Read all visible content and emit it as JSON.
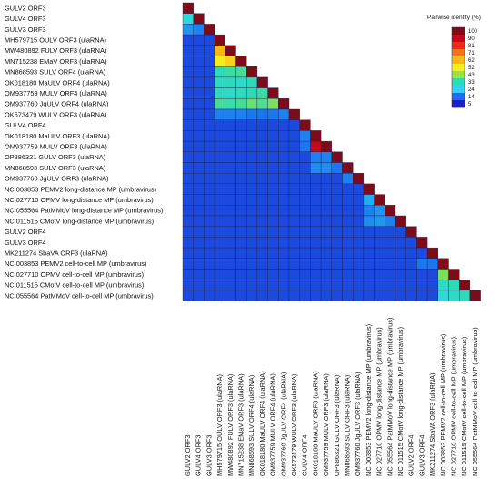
{
  "chart_data": {
    "type": "heatmap",
    "title": "",
    "legend_title": "Pairwise identity (%)",
    "legend_placement": "top-right",
    "legend_ticks": [
      100,
      90,
      81,
      71,
      62,
      52,
      43,
      33,
      24,
      14,
      5
    ],
    "legend_colors": [
      "#7b0d1b",
      "#c5081a",
      "#ef2a1f",
      "#f6711c",
      "#f9b81a",
      "#f4ee1d",
      "#9ce23a",
      "#2fdbb2",
      "#2fd3f2",
      "#1a6cf0",
      "#1f1fc8"
    ],
    "labels": [
      "GULV2 ORF3",
      "GULV4 ORF3",
      "GULV3 ORF3",
      "MH579715 OULV ORF3 (ulaRNA)",
      "MW480892 FULV ORF3 (ulaRNA)",
      "MN715238 EMaV ORF3 (ulaRNA)",
      "MN868593 SULV ORF4 (ulaRNA)",
      "OK018180 MaULV ORF4 (ulaRNA)",
      "OM937759 MULV ORF4 (ulaRNA)",
      "OM937760 JgULV ORF4 (ulaRNA)",
      "OK573479 WULV ORF3 (ulaRNA)",
      "GULV4 ORF4",
      "OK018180 MaULV ORF3 (ulaRNA)",
      "OM937759 MULV ORF3 (ulaRNA)",
      "OP886321 GULV ORF3 (ulaRNA)",
      "MN868593 SULV ORF3 (ulaRNA)",
      "OM937760 JgULV ORF3 (ulaRNA)",
      "NC 003853 PEMV2 long-distance MP (umbravirus)",
      "NC 027710 OPMV long-distance MP (umbravirus)",
      "NC 055564 PatMMoV long-distance MP (umbravirus)",
      "NC 011515 CMotV long-distance MP (umbravirus)",
      "GULV2 ORF4",
      "GULV3 ORF4",
      "MK211274 SbaVA  ORF3 (ulaRNA)",
      "NC 003853 PEMV2 cell-to-cell MP (umbravirus)",
      "NC 027710 OPMV cell-to-cell MP (umbravirus)",
      "NC 011515 CMotV cell-to-cell MP (umbravirus)",
      "NC 055564 PatMMoV cell-to-cell MP (umbravirus)"
    ],
    "default_identity": 10,
    "diagonal_identity": 100,
    "pairs": [
      {
        "row": 1,
        "col": 0,
        "value": 28
      },
      {
        "row": 2,
        "col": 0,
        "value": 18
      },
      {
        "row": 2,
        "col": 1,
        "value": 16
      },
      {
        "row": 4,
        "col": 3,
        "value": 62
      },
      {
        "row": 5,
        "col": 3,
        "value": 52
      },
      {
        "row": 5,
        "col": 4,
        "value": 57
      },
      {
        "row": 6,
        "col": 3,
        "value": 32
      },
      {
        "row": 6,
        "col": 4,
        "value": 34
      },
      {
        "row": 6,
        "col": 5,
        "value": 35
      },
      {
        "row": 7,
        "col": 3,
        "value": 30
      },
      {
        "row": 7,
        "col": 4,
        "value": 31
      },
      {
        "row": 7,
        "col": 5,
        "value": 30
      },
      {
        "row": 7,
        "col": 6,
        "value": 32
      },
      {
        "row": 8,
        "col": 3,
        "value": 31
      },
      {
        "row": 8,
        "col": 4,
        "value": 30
      },
      {
        "row": 8,
        "col": 5,
        "value": 31
      },
      {
        "row": 8,
        "col": 6,
        "value": 32
      },
      {
        "row": 8,
        "col": 7,
        "value": 34
      },
      {
        "row": 9,
        "col": 3,
        "value": 35
      },
      {
        "row": 9,
        "col": 4,
        "value": 34
      },
      {
        "row": 9,
        "col": 5,
        "value": 35
      },
      {
        "row": 9,
        "col": 6,
        "value": 38
      },
      {
        "row": 9,
        "col": 7,
        "value": 36
      },
      {
        "row": 9,
        "col": 8,
        "value": 40
      },
      {
        "row": 10,
        "col": 3,
        "value": 16
      },
      {
        "row": 10,
        "col": 4,
        "value": 16
      },
      {
        "row": 10,
        "col": 5,
        "value": 16
      },
      {
        "row": 10,
        "col": 6,
        "value": 15
      },
      {
        "row": 10,
        "col": 7,
        "value": 15
      },
      {
        "row": 10,
        "col": 8,
        "value": 15
      },
      {
        "row": 10,
        "col": 9,
        "value": 16
      },
      {
        "row": 12,
        "col": 11,
        "value": 16
      },
      {
        "row": 13,
        "col": 11,
        "value": 15
      },
      {
        "row": 13,
        "col": 12,
        "value": 90
      },
      {
        "row": 14,
        "col": 12,
        "value": 16
      },
      {
        "row": 14,
        "col": 13,
        "value": 16
      },
      {
        "row": 15,
        "col": 12,
        "value": 17
      },
      {
        "row": 15,
        "col": 13,
        "value": 17
      },
      {
        "row": 15,
        "col": 14,
        "value": 15
      },
      {
        "row": 16,
        "col": 15,
        "value": 16
      },
      {
        "row": 18,
        "col": 17,
        "value": 20
      },
      {
        "row": 19,
        "col": 17,
        "value": 16
      },
      {
        "row": 19,
        "col": 18,
        "value": 18
      },
      {
        "row": 20,
        "col": 17,
        "value": 17
      },
      {
        "row": 20,
        "col": 18,
        "value": 18
      },
      {
        "row": 20,
        "col": 19,
        "value": 16
      },
      {
        "row": 24,
        "col": 22,
        "value": 15
      },
      {
        "row": 24,
        "col": 23,
        "value": 15
      },
      {
        "row": 25,
        "col": 24,
        "value": 40
      },
      {
        "row": 26,
        "col": 24,
        "value": 30
      },
      {
        "row": 26,
        "col": 25,
        "value": 32
      },
      {
        "row": 27,
        "col": 24,
        "value": 28
      },
      {
        "row": 27,
        "col": 25,
        "value": 30
      },
      {
        "row": 27,
        "col": 26,
        "value": 32
      }
    ]
  }
}
